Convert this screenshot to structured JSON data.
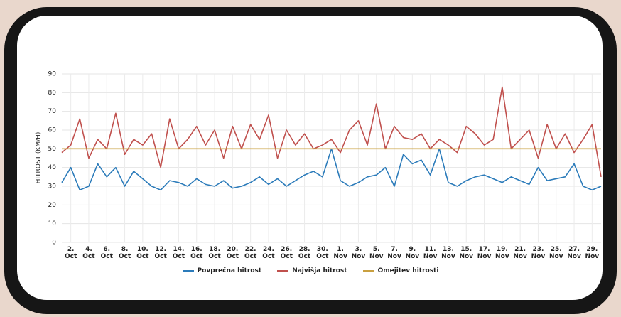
{
  "chart_data": {
    "type": "line",
    "y_label": "HITROST (KM/H)",
    "categories": [
      null,
      "2. Oct",
      null,
      "4. Oct",
      null,
      "6. Oct",
      null,
      "8. Oct",
      null,
      "10. Oct",
      null,
      "12. Oct",
      null,
      "14. Oct",
      null,
      "16. Oct",
      null,
      "18. Oct",
      null,
      "20. Oct",
      null,
      "22. Oct",
      null,
      "24. Oct",
      null,
      "26. Oct",
      null,
      "28. Oct",
      null,
      "30. Oct",
      null,
      "1. Nov",
      null,
      "3. Nov",
      null,
      "5. Nov",
      null,
      "7. Nov",
      null,
      "9. Nov",
      null,
      "11. Nov",
      null,
      "13. Nov",
      null,
      "15. Nov",
      null,
      "17. Nov",
      null,
      "19. Nov",
      null,
      "21. Nov",
      null,
      "23. Nov",
      null,
      "25. Nov",
      null,
      "27. Nov",
      null,
      "29. Nov",
      null
    ],
    "series": [
      {
        "name": "Povprečna hitrost",
        "color": "#2b7bba",
        "values": [
          32,
          40,
          28,
          30,
          42,
          35,
          40,
          30,
          38,
          34,
          30,
          28,
          33,
          32,
          30,
          34,
          31,
          30,
          33,
          29,
          30,
          32,
          35,
          31,
          34,
          30,
          33,
          36,
          38,
          35,
          50,
          33,
          30,
          32,
          35,
          36,
          40,
          30,
          47,
          42,
          44,
          36,
          50,
          32,
          30,
          33,
          35,
          36,
          34,
          32,
          35,
          33,
          31,
          40,
          33,
          34,
          35,
          42,
          30,
          28,
          30
        ]
      },
      {
        "name": "Najvišja hitrost",
        "color": "#c0504d",
        "values": [
          48,
          52,
          66,
          45,
          55,
          50,
          69,
          47,
          55,
          52,
          58,
          40,
          66,
          50,
          55,
          62,
          52,
          60,
          45,
          62,
          50,
          63,
          55,
          68,
          45,
          60,
          52,
          58,
          50,
          52,
          55,
          48,
          60,
          65,
          52,
          74,
          50,
          62,
          56,
          55,
          58,
          50,
          55,
          52,
          48,
          62,
          58,
          52,
          55,
          83,
          50,
          55,
          60,
          45,
          63,
          50,
          58,
          48,
          55,
          63,
          35
        ]
      },
      {
        "name": "Omejitev hitrosti",
        "color": "#c9a040",
        "values": [
          50,
          50,
          50,
          50,
          50,
          50,
          50,
          50,
          50,
          50,
          50,
          50,
          50,
          50,
          50,
          50,
          50,
          50,
          50,
          50,
          50,
          50,
          50,
          50,
          50,
          50,
          50,
          50,
          50,
          50,
          50,
          50,
          50,
          50,
          50,
          50,
          50,
          50,
          50,
          50,
          50,
          50,
          50,
          50,
          50,
          50,
          50,
          50,
          50,
          50,
          50,
          50,
          50,
          50,
          50,
          50,
          50,
          50,
          50,
          50,
          50
        ]
      }
    ],
    "ylim": [
      0,
      90
    ],
    "yticks": [
      0,
      10,
      20,
      30,
      40,
      50,
      60,
      70,
      80,
      90
    ],
    "grid": true
  }
}
